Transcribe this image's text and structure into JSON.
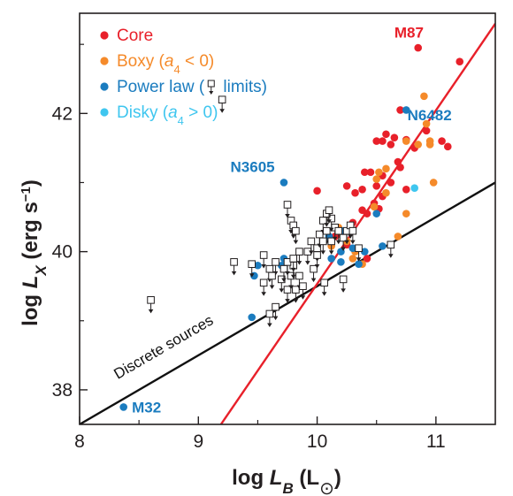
{
  "chart_data": {
    "type": "scatter",
    "xlabel": {
      "prefix": "log ",
      "var": "L",
      "sub": "B",
      "suffix": " (L",
      "sun": "⊙",
      "close": ")"
    },
    "ylabel": {
      "prefix": "log ",
      "var": "L",
      "sub": "X",
      "suffix": " (erg s",
      "sup": "−1",
      "close": ")"
    },
    "xlim": [
      8,
      11.5
    ],
    "ylim": [
      37.5,
      43.45
    ],
    "x_ticks": [
      {
        "value": 8,
        "label": "8"
      },
      {
        "value": 9,
        "label": "9"
      },
      {
        "value": 10,
        "label": "10"
      },
      {
        "value": 11,
        "label": "11"
      }
    ],
    "y_ticks": [
      {
        "value": 38,
        "label": "38"
      },
      {
        "value": 40,
        "label": "40"
      },
      {
        "value": 42,
        "label": "42"
      }
    ],
    "legend": {
      "position": "top-left",
      "entries": [
        {
          "key": "core",
          "parts": [
            {
              "t": "Core"
            }
          ],
          "color": "#e8202a",
          "marker": "circle"
        },
        {
          "key": "boxy",
          "parts": [
            {
              "t": "Boxy ("
            },
            {
              "t": "a",
              "i": true
            },
            {
              "t": "4",
              "sub": true
            },
            {
              "t": " < 0)"
            }
          ],
          "color": "#f58a2a",
          "marker": "circle"
        },
        {
          "key": "power",
          "parts": [
            {
              "t": "Power law ("
            },
            {
              "sq": true
            },
            {
              "t": " limits)"
            }
          ],
          "color": "#1b7cbf",
          "marker": "circle"
        },
        {
          "key": "disky",
          "parts": [
            {
              "t": "Disky ("
            },
            {
              "t": "a",
              "i": true
            },
            {
              "t": "4",
              "sub": true
            },
            {
              "t": " > 0)"
            }
          ],
          "color": "#3fc6ef",
          "marker": "circle"
        }
      ]
    },
    "lines": [
      {
        "key": "discrete",
        "label": "Discrete sources",
        "color": "#111111",
        "x": [
          8,
          11.5
        ],
        "y": [
          37.5,
          41.0
        ]
      },
      {
        "key": "core_fit",
        "label": "",
        "color": "#e8202a",
        "x": [
          9.19,
          11.5
        ],
        "y": [
          37.5,
          43.3
        ]
      }
    ],
    "annotations": [
      {
        "text": "M87",
        "x": 10.65,
        "y": 43.1,
        "color": "#e8202a"
      },
      {
        "text": "N6482",
        "x": 10.76,
        "y": 41.9,
        "color": "#1b7cbf"
      },
      {
        "text": "N3605",
        "x": 9.27,
        "y": 41.15,
        "color": "#1b7cbf"
      },
      {
        "text": "M32",
        "x": 8.44,
        "y": 37.67,
        "color": "#1b7cbf"
      }
    ],
    "series": [
      {
        "key": "core",
        "color": "#e8202a",
        "points": [
          [
            10.85,
            42.95
          ],
          [
            11.2,
            42.75
          ],
          [
            10.7,
            42.05
          ],
          [
            10.65,
            41.65
          ],
          [
            10.75,
            41.62
          ],
          [
            10.55,
            41.6
          ],
          [
            10.62,
            41.55
          ],
          [
            10.5,
            41.6
          ],
          [
            10.58,
            41.7
          ],
          [
            10.92,
            41.75
          ],
          [
            11.05,
            41.6
          ],
          [
            11.1,
            41.52
          ],
          [
            10.82,
            41.5
          ],
          [
            10.68,
            41.3
          ],
          [
            10.7,
            41.22
          ],
          [
            10.4,
            41.15
          ],
          [
            10.45,
            41.15
          ],
          [
            10.55,
            41.1
          ],
          [
            10.62,
            41.0
          ],
          [
            10.75,
            40.9
          ],
          [
            10.5,
            40.95
          ],
          [
            10.25,
            40.95
          ],
          [
            10.32,
            40.85
          ],
          [
            10.55,
            40.8
          ],
          [
            10.0,
            40.88
          ],
          [
            10.38,
            40.6
          ],
          [
            10.42,
            40.55
          ],
          [
            10.3,
            40.42
          ],
          [
            10.2,
            40.25
          ],
          [
            10.15,
            40.22
          ],
          [
            10.25,
            40.1
          ],
          [
            10.48,
            40.7
          ],
          [
            10.52,
            40.62
          ],
          [
            10.38,
            40.9
          ],
          [
            10.42,
            39.9
          ]
        ]
      },
      {
        "key": "boxy",
        "color": "#f58a2a",
        "points": [
          [
            10.9,
            42.25
          ],
          [
            10.92,
            41.85
          ],
          [
            10.95,
            41.6
          ],
          [
            10.75,
            41.6
          ],
          [
            10.95,
            41.55
          ],
          [
            10.85,
            41.55
          ],
          [
            10.52,
            41.15
          ],
          [
            10.58,
            41.2
          ],
          [
            10.98,
            41.0
          ],
          [
            10.5,
            41.05
          ],
          [
            10.58,
            40.85
          ],
          [
            10.48,
            40.65
          ],
          [
            10.75,
            40.55
          ],
          [
            10.68,
            40.22
          ],
          [
            10.3,
            39.9
          ],
          [
            10.12,
            40.08
          ],
          [
            10.18,
            40.35
          ],
          [
            10.38,
            39.82
          ],
          [
            10.25,
            40.15
          ],
          [
            10.32,
            40.0
          ]
        ]
      },
      {
        "key": "power",
        "color": "#1b7cbf",
        "points": [
          [
            9.72,
            41.0
          ],
          [
            10.75,
            42.05
          ],
          [
            8.37,
            37.75
          ],
          [
            9.5,
            39.8
          ],
          [
            9.47,
            39.65
          ],
          [
            9.7,
            39.8
          ],
          [
            9.72,
            39.9
          ],
          [
            9.45,
            39.05
          ],
          [
            10.12,
            39.9
          ],
          [
            10.2,
            39.85
          ],
          [
            10.2,
            40.0
          ],
          [
            10.3,
            40.05
          ],
          [
            10.35,
            39.82
          ],
          [
            10.5,
            40.55
          ],
          [
            10.55,
            40.08
          ],
          [
            10.1,
            40.22
          ],
          [
            10.22,
            40.3
          ],
          [
            10.4,
            40.0
          ]
        ]
      },
      {
        "key": "disky",
        "color": "#3fc6ef",
        "points": [
          [
            10.82,
            40.92
          ]
        ]
      }
    ],
    "upper_limits": [
      [
        9.2,
        42.2
      ],
      [
        8.6,
        39.3
      ],
      [
        9.3,
        39.85
      ],
      [
        9.45,
        39.82
      ],
      [
        9.55,
        39.95
      ],
      [
        9.6,
        39.75
      ],
      [
        9.55,
        39.55
      ],
      [
        9.65,
        39.85
      ],
      [
        9.62,
        39.65
      ],
      [
        9.7,
        39.6
      ],
      [
        9.72,
        39.75
      ],
      [
        9.75,
        39.45
      ],
      [
        9.78,
        39.65
      ],
      [
        9.8,
        39.8
      ],
      [
        9.82,
        39.45
      ],
      [
        9.85,
        39.65
      ],
      [
        9.88,
        39.5
      ],
      [
        9.65,
        39.2
      ],
      [
        9.6,
        39.1
      ],
      [
        9.75,
        39.85
      ],
      [
        9.8,
        39.9
      ],
      [
        9.85,
        40.0
      ],
      [
        9.92,
        40.0
      ],
      [
        9.97,
        39.75
      ],
      [
        9.95,
        40.15
      ],
      [
        10.0,
        40.05
      ],
      [
        10.02,
        40.25
      ],
      [
        10.05,
        40.45
      ],
      [
        10.08,
        40.3
      ],
      [
        10.12,
        40.15
      ],
      [
        10.05,
        40.15
      ],
      [
        10.15,
        40.35
      ],
      [
        10.18,
        40.3
      ],
      [
        10.22,
        40.2
      ],
      [
        10.25,
        40.3
      ],
      [
        10.28,
        40.38
      ],
      [
        10.3,
        40.3
      ],
      [
        10.12,
        40.48
      ],
      [
        10.08,
        40.55
      ],
      [
        10.1,
        40.6
      ],
      [
        9.75,
        40.68
      ],
      [
        9.78,
        40.45
      ],
      [
        9.8,
        40.38
      ],
      [
        9.82,
        40.3
      ],
      [
        10.0,
        39.95
      ],
      [
        10.06,
        39.55
      ],
      [
        10.22,
        39.6
      ],
      [
        10.35,
        40.05
      ],
      [
        10.62,
        40.1
      ]
    ]
  }
}
